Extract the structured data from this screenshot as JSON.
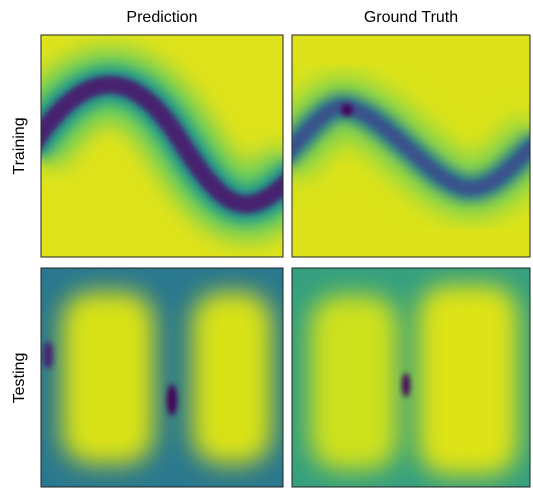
{
  "columns": [
    "Prediction",
    "Ground Truth"
  ],
  "rows": [
    "Training",
    "Testing"
  ]
}
